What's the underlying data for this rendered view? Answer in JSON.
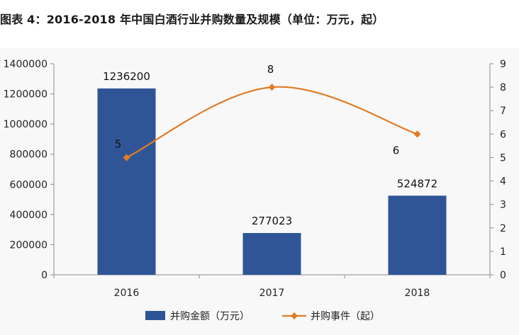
{
  "title": "图表 4：2016-2018 年中国白酒行业并购数量及规模（单位：万元，起）",
  "chart_data": {
    "type": "bar",
    "categories": [
      "2016",
      "2017",
      "2018"
    ],
    "series": [
      {
        "name": "并购金额（万元）",
        "type": "bar",
        "axis": "left",
        "values": [
          1236200,
          277023,
          524872
        ],
        "color": "#2f5597"
      },
      {
        "name": "并购事件（起）",
        "type": "line",
        "axis": "right",
        "values": [
          5,
          8,
          6
        ],
        "color": "#e07c26"
      }
    ],
    "y_left": {
      "min": 0,
      "max": 1400000,
      "ticks": [
        "0",
        "200000",
        "400000",
        "600000",
        "800000",
        "1000000",
        "1200000",
        "1400000"
      ]
    },
    "y_right": {
      "min": 0,
      "max": 9,
      "ticks": [
        "0",
        "1",
        "2",
        "3",
        "4",
        "5",
        "6",
        "7",
        "8",
        "9"
      ]
    },
    "data_labels_bar": [
      "1236200",
      "277023",
      "524872"
    ],
    "data_labels_line": [
      "5",
      "8",
      "6"
    ],
    "legend_position": "bottom",
    "grid": false
  }
}
